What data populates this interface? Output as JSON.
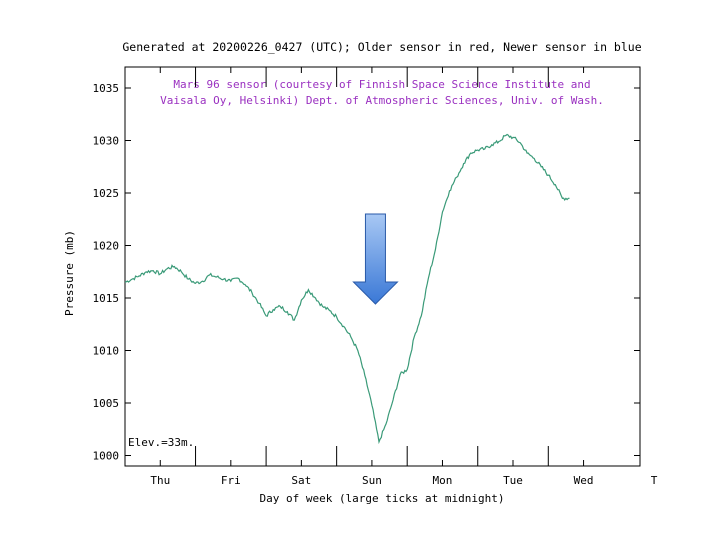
{
  "chart_data": {
    "type": "line",
    "title": "Generated at 20200226_0427 (UTC); Older sensor in red, Newer sensor in blue",
    "annotation_lines": [
      "Mars 96 sensor (courtesy of Finnish Space Science Institute and",
      "Vaisala Oy, Helsinki) Dept. of Atmospheric Sciences, Univ. of Wash."
    ],
    "elevation_label": "Elev.=33m.",
    "xlabel": "Day of week (large ticks at midnight)",
    "ylabel": "Pressure (mb)",
    "ylim": [
      999,
      1037
    ],
    "xlim": [
      0,
      7.3
    ],
    "yticks": [
      1000,
      1005,
      1010,
      1015,
      1020,
      1025,
      1030,
      1035
    ],
    "day_labels": [
      {
        "x": 0.5,
        "label": "Thu"
      },
      {
        "x": 1.5,
        "label": "Fri"
      },
      {
        "x": 2.5,
        "label": "Sat"
      },
      {
        "x": 3.5,
        "label": "Sun"
      },
      {
        "x": 4.5,
        "label": "Mon"
      },
      {
        "x": 5.5,
        "label": "Tue"
      },
      {
        "x": 6.5,
        "label": "Wed"
      },
      {
        "x": 7.5,
        "label": "T"
      }
    ],
    "grid": false,
    "line_color": "#3a9a78",
    "series": [
      {
        "x": [
          0.0,
          0.1,
          0.2,
          0.3,
          0.4,
          0.5,
          0.6,
          0.7,
          0.8,
          0.9,
          1.0,
          1.1,
          1.2,
          1.3,
          1.4,
          1.5,
          1.6,
          1.7,
          1.8,
          1.9,
          2.0,
          2.1,
          2.2,
          2.3,
          2.4,
          2.5,
          2.6,
          2.7,
          2.8,
          2.9,
          3.0,
          3.1,
          3.2,
          3.3,
          3.4,
          3.5,
          3.6,
          3.7,
          3.8,
          3.9,
          4.0,
          4.1,
          4.2,
          4.3,
          4.4,
          4.5,
          4.6,
          4.7,
          4.8,
          4.9,
          5.0,
          5.1,
          5.2,
          5.3,
          5.4,
          5.5,
          5.6,
          5.7,
          5.8,
          5.9,
          6.0,
          6.1,
          6.2,
          6.3
        ],
        "values": [
          1016.5,
          1016.8,
          1017.1,
          1017.5,
          1017.6,
          1017.3,
          1017.8,
          1018.0,
          1017.5,
          1016.8,
          1016.4,
          1016.6,
          1017.2,
          1017.0,
          1016.8,
          1016.6,
          1016.9,
          1016.3,
          1015.5,
          1014.5,
          1013.3,
          1013.9,
          1014.2,
          1013.7,
          1012.9,
          1014.8,
          1015.8,
          1015.0,
          1014.2,
          1013.8,
          1013.2,
          1012.3,
          1011.3,
          1010.0,
          1007.6,
          1004.8,
          1001.3,
          1003.0,
          1005.3,
          1007.7,
          1008.2,
          1011.3,
          1013.3,
          1016.9,
          1019.6,
          1023.2,
          1025.2,
          1026.5,
          1027.8,
          1028.8,
          1029.1,
          1029.2,
          1029.6,
          1029.9,
          1030.5,
          1030.3,
          1029.8,
          1028.8,
          1028.3,
          1027.5,
          1026.7,
          1025.8,
          1024.5,
          1024.5
        ]
      }
    ]
  },
  "arrow_annotation": {
    "type": "down-arrow",
    "x": 3.55,
    "fill_top": "#a8c8f4",
    "fill_bottom": "#3a78d6",
    "stroke": "#2a5aa8"
  }
}
